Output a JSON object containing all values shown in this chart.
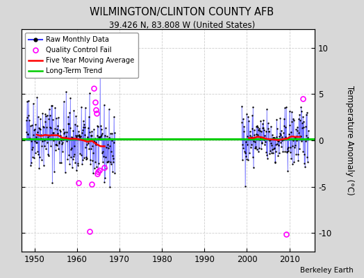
{
  "title": "WILMINGTON/CLINTON COUNTY AFB",
  "subtitle": "39.426 N, 83.808 W (United States)",
  "ylabel": "Temperature Anomaly (°C)",
  "credit": "Berkeley Earth",
  "xlim": [
    1947,
    2016
  ],
  "ylim": [
    -12,
    12
  ],
  "yticks": [
    -10,
    -5,
    0,
    5,
    10
  ],
  "xticks": [
    1950,
    1960,
    1970,
    1980,
    1990,
    2000,
    2010
  ],
  "bg_color": "#d8d8d8",
  "plot_bg_color": "#ffffff",
  "grid_color": "#c8c8c8",
  "raw_color": "#3333ff",
  "ma_color": "#ff0000",
  "trend_color": "#00cc00",
  "qc_color": "#ff00ff",
  "seed": 42,
  "period1_start": 1948.0,
  "period1_end": 1969.0,
  "period2_start": 1998.75,
  "period2_end": 2014.5,
  "trend_y": 0.18,
  "qc_points": [
    [
      1964.0,
      5.6
    ],
    [
      1964.3,
      4.1
    ],
    [
      1964.5,
      3.3
    ],
    [
      1964.67,
      2.9
    ],
    [
      1960.3,
      -4.6
    ],
    [
      1963.5,
      -4.7
    ],
    [
      1964.8,
      -3.6
    ],
    [
      1965.0,
      -3.4
    ],
    [
      1965.2,
      -3.2
    ],
    [
      1966.4,
      -2.9
    ],
    [
      1963.0,
      -9.8
    ],
    [
      2013.2,
      4.5
    ],
    [
      2009.3,
      -10.1
    ]
  ]
}
